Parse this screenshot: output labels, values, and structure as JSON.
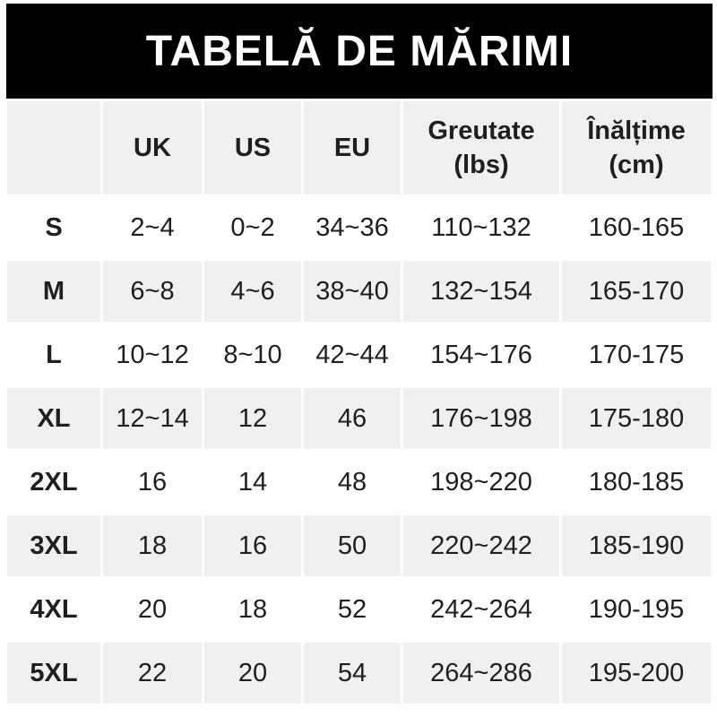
{
  "title": "TABELĂ DE MĂRIMI",
  "colors": {
    "banner_bg": "#000000",
    "banner_text": "#ffffff",
    "row_shade_bg": "#f0f0f0",
    "text": "#1f1f1f",
    "page_bg": "#ffffff"
  },
  "table": {
    "columns": [
      {
        "key": "size",
        "label": "",
        "sub": ""
      },
      {
        "key": "uk",
        "label": "UK",
        "sub": ""
      },
      {
        "key": "us",
        "label": "US",
        "sub": ""
      },
      {
        "key": "eu",
        "label": "EU",
        "sub": ""
      },
      {
        "key": "weight",
        "label": "Greutate",
        "sub": "(lbs)"
      },
      {
        "key": "height",
        "label": "Înălțime",
        "sub": "(cm)"
      }
    ],
    "rows": [
      {
        "size": "S",
        "uk": "2~4",
        "us": "0~2",
        "eu": "34~36",
        "weight": "110~132",
        "height": "160-165"
      },
      {
        "size": "M",
        "uk": "6~8",
        "us": "4~6",
        "eu": "38~40",
        "weight": "132~154",
        "height": "165-170"
      },
      {
        "size": "L",
        "uk": "10~12",
        "us": "8~10",
        "eu": "42~44",
        "weight": "154~176",
        "height": "170-175"
      },
      {
        "size": "XL",
        "uk": "12~14",
        "us": "12",
        "eu": "46",
        "weight": "176~198",
        "height": "175-180"
      },
      {
        "size": "2XL",
        "uk": "16",
        "us": "14",
        "eu": "48",
        "weight": "198~220",
        "height": "180-185"
      },
      {
        "size": "3XL",
        "uk": "18",
        "us": "16",
        "eu": "50",
        "weight": "220~242",
        "height": "185-190"
      },
      {
        "size": "4XL",
        "uk": "20",
        "us": "18",
        "eu": "52",
        "weight": "242~264",
        "height": "190-195"
      },
      {
        "size": "5XL",
        "uk": "22",
        "us": "20",
        "eu": "54",
        "weight": "264~286",
        "height": "195-200"
      }
    ]
  }
}
